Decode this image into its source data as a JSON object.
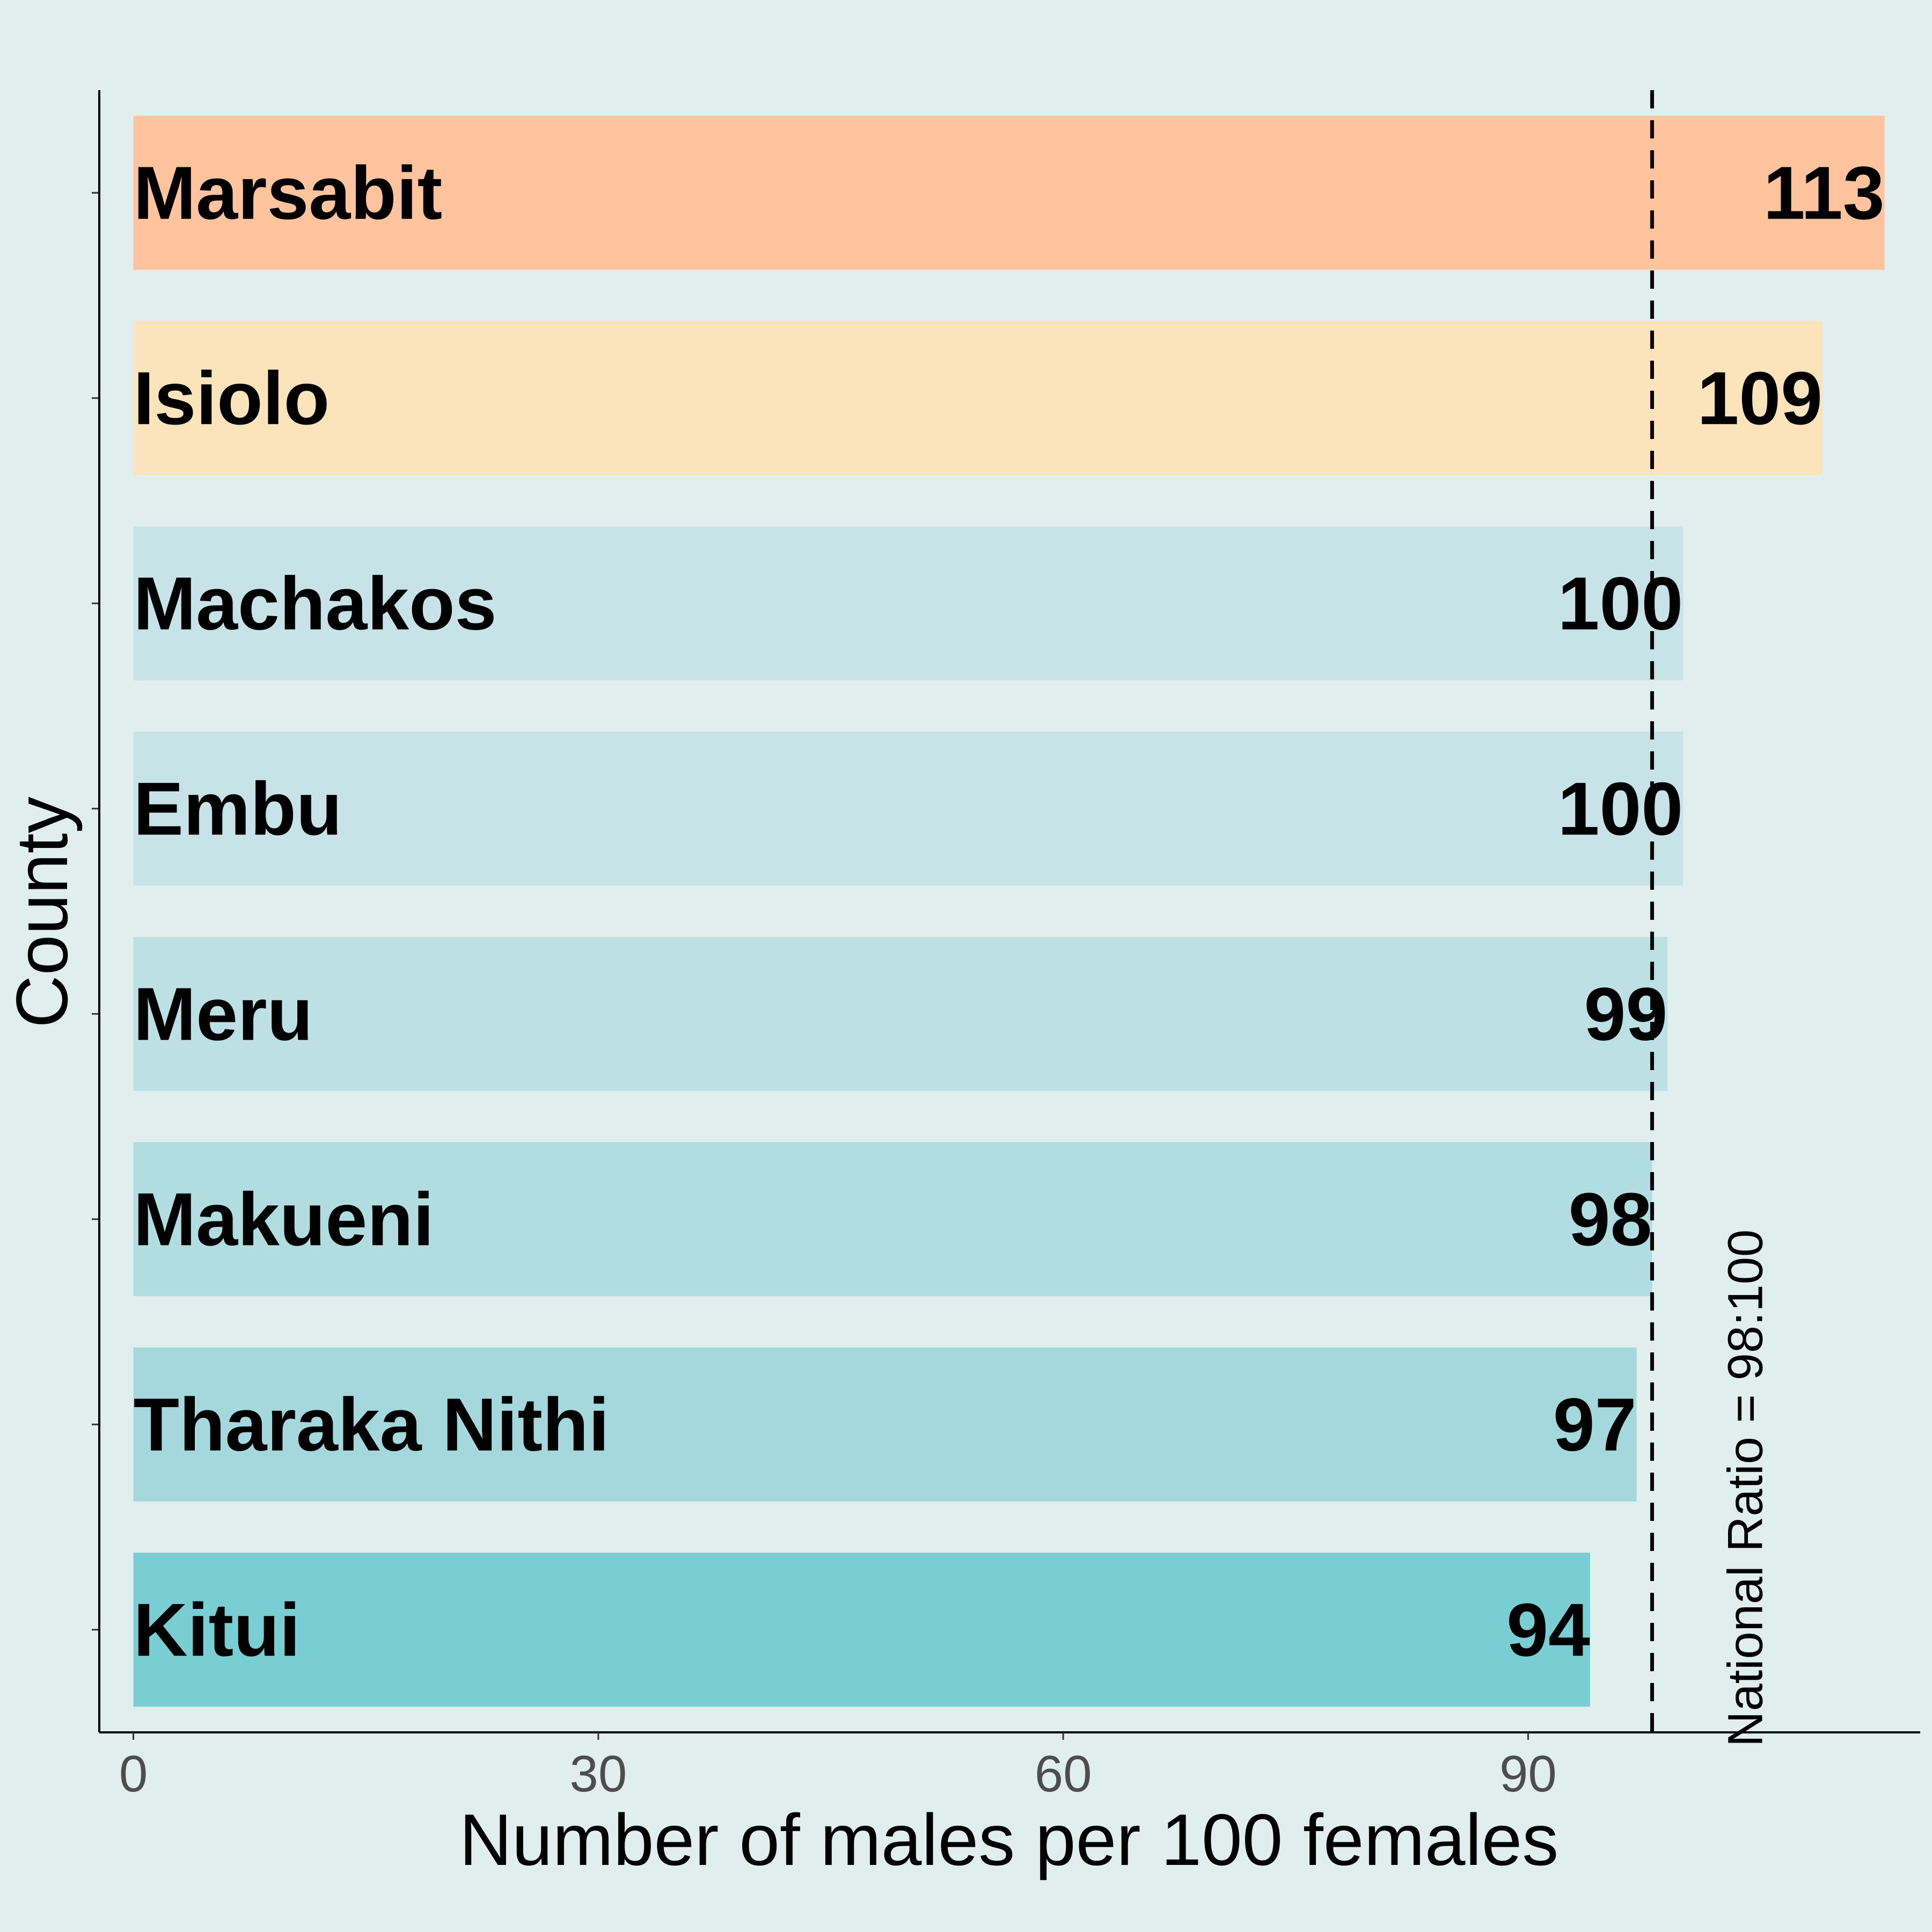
{
  "chart_data": {
    "type": "bar",
    "orientation": "horizontal",
    "categories": [
      "Marsabit",
      "Isiolo",
      "Machakos",
      "Embu",
      "Meru",
      "Makueni",
      "Tharaka Nithi",
      "Kitui"
    ],
    "values": [
      113,
      109,
      100,
      100,
      99,
      98,
      97,
      94
    ],
    "value_labels": [
      "113",
      "109",
      "100",
      "100",
      "99",
      "98",
      "97",
      "94"
    ],
    "bar_colors": [
      "#ffc39e",
      "#fbe3bb",
      "#c8e3e7",
      "#c8e3e7",
      "#bce0e3",
      "#b1dce0",
      "#a4d8dc",
      "#78ced3"
    ],
    "xlabel": "Number of males per 100 females",
    "ylabel": "County",
    "xlim": [
      -2.2,
      115.3
    ],
    "xticks": [
      0,
      30,
      60,
      90
    ],
    "xtick_labels": [
      "0",
      "30",
      "60",
      "90"
    ],
    "grid": false,
    "legend": "none",
    "reference_line": {
      "x": 98,
      "style": "dashed",
      "color": "#000000",
      "label": "National Ratio = 98:100"
    }
  }
}
